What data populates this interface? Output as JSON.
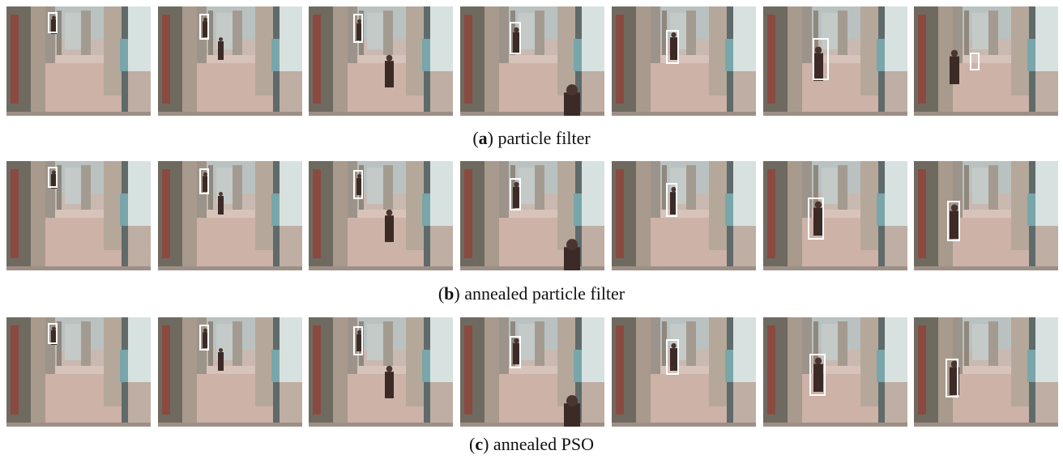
{
  "captions": [
    {
      "prefix": "(",
      "label": "a",
      "suffix": ") particle filter"
    },
    {
      "prefix": "(",
      "label": "b",
      "suffix": ") annealed particle filter"
    },
    {
      "prefix": "(",
      "label": "c",
      "suffix": ") annealed PSO"
    }
  ]
}
